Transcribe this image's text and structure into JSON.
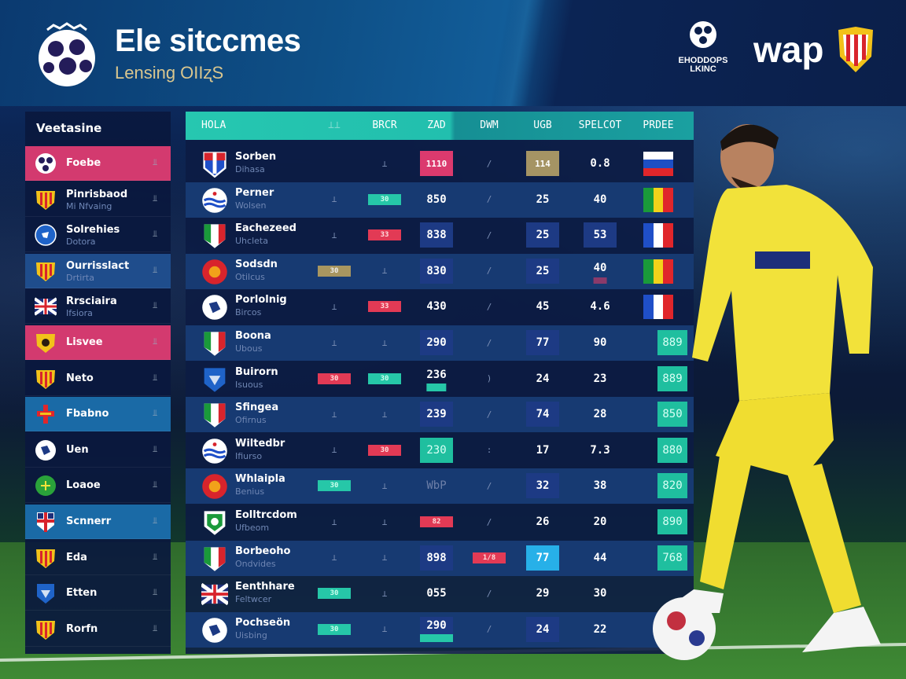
{
  "header": {
    "title": "Ele sitccmes",
    "subtitle": "Lensing OIIʐS",
    "partner_logo_text": "EHODDOPS LKINC",
    "brand": "wap"
  },
  "sidebar": {
    "title": "Veetasine",
    "items": [
      {
        "label": "Foebe",
        "sub": "",
        "icon": "ball",
        "state": "pink"
      },
      {
        "label": "Pinrisbaod",
        "sub": "Mi Nfvaing",
        "icon": "stripes",
        "state": ""
      },
      {
        "label": "Solrehies",
        "sub": "Dotora",
        "icon": "bluecircle",
        "state": ""
      },
      {
        "label": "Ourrisslact",
        "sub": "Drtirta",
        "icon": "stripes",
        "state": "blue"
      },
      {
        "label": "Rrsciaira",
        "sub": "Ifsiora",
        "icon": "uk",
        "state": ""
      },
      {
        "label": "Lisvee",
        "sub": "",
        "icon": "yellow",
        "state": "pink"
      },
      {
        "label": "Neto",
        "sub": "",
        "icon": "stripes",
        "state": ""
      },
      {
        "label": "Fbabno",
        "sub": "",
        "icon": "cross",
        "state": "sky"
      },
      {
        "label": "Uen",
        "sub": "",
        "icon": "whitecircle",
        "state": ""
      },
      {
        "label": "Loaoe",
        "sub": "",
        "icon": "green",
        "state": ""
      },
      {
        "label": "Scnnerr",
        "sub": "",
        "icon": "ukshield",
        "state": "sky"
      },
      {
        "label": "Eda",
        "sub": "",
        "icon": "stripes",
        "state": ""
      },
      {
        "label": "Etten",
        "sub": "",
        "icon": "blueshield",
        "state": ""
      },
      {
        "label": "Rorfn",
        "sub": "",
        "icon": "stripes",
        "state": ""
      }
    ]
  },
  "table": {
    "columns": [
      "HOLA",
      "⊥⊥",
      "BRCR",
      "ZAD",
      "DWM",
      "UGB",
      "SPELCOT",
      "PRDEE"
    ],
    "rows": [
      {
        "name": "Sorben",
        "sub": "Dihasa",
        "crest": "redshield",
        "cells": [
          [
            "",
            ""
          ],
          [
            "⊥",
            "mark"
          ],
          [
            "1110",
            "pink"
          ],
          [
            "/",
            "mark"
          ],
          [
            "114",
            "gold"
          ],
          [
            "0.8",
            ""
          ]
        ],
        "last": {
          "flag": [
            "#ffffff",
            "#1d4fc4",
            "#e0262b"
          ],
          "dir": "h"
        }
      },
      {
        "name": "Perner",
        "sub": "Wolsen",
        "crest": "waves",
        "cells": [
          [
            "⊥",
            "mark"
          ],
          [
            "30",
            "bteal"
          ],
          [
            "850",
            ""
          ],
          [
            "/",
            "mark"
          ],
          [
            "25",
            ""
          ],
          [
            "40",
            ""
          ]
        ],
        "last": {
          "flag": [
            "#1a9a3a",
            "#f3d21a",
            "#e0262b"
          ],
          "dir": "v"
        }
      },
      {
        "name": "Eachezeed",
        "sub": "Uhcleta",
        "crest": "italy",
        "cells": [
          [
            "⊥",
            "mark"
          ],
          [
            "33",
            "bred"
          ],
          [
            "838",
            "navy"
          ],
          [
            "/",
            "mark"
          ],
          [
            "25",
            "navy"
          ],
          [
            "53",
            "navy"
          ]
        ],
        "last": {
          "flag": [
            "#1f4fc8",
            "#ffffff",
            "#e0262b"
          ],
          "dir": "v"
        }
      },
      {
        "name": "Sodsdn",
        "sub": "Otilcus",
        "crest": "redcircle",
        "cells": [
          [
            "30",
            "bgold"
          ],
          [
            "⊥",
            "mark"
          ],
          [
            "830",
            "navy"
          ],
          [
            "/",
            "mark"
          ],
          [
            "25",
            "navy"
          ],
          [
            "40",
            "purplebar"
          ]
        ],
        "last": {
          "flag": [
            "#1a9a3a",
            "#f3d21a",
            "#e0262b"
          ],
          "dir": "v"
        }
      },
      {
        "name": "Porlolnig",
        "sub": "Bircos",
        "crest": "whitecircle",
        "cells": [
          [
            "⊥",
            "mark"
          ],
          [
            "33",
            "bred"
          ],
          [
            "430",
            ""
          ],
          [
            "/",
            "mark"
          ],
          [
            "45",
            ""
          ],
          [
            "4.6",
            ""
          ]
        ],
        "last": {
          "flag": [
            "#1f4fc8",
            "#ffffff",
            "#e0262b"
          ],
          "dir": "v"
        }
      },
      {
        "name": "Boona",
        "sub": "Ubous",
        "crest": "italy",
        "cells": [
          [
            "⊥",
            "mark"
          ],
          [
            "⊥",
            "mark"
          ],
          [
            "290",
            "navy"
          ],
          [
            "/",
            "mark"
          ],
          [
            "77",
            "navy"
          ],
          [
            "90",
            ""
          ]
        ],
        "last": {
          "badge": "889"
        }
      },
      {
        "name": "Buirorn",
        "sub": "Isuous",
        "crest": "blueshield",
        "cells": [
          [
            "30",
            "bred"
          ],
          [
            "30",
            "bteal"
          ],
          [
            "236",
            "underbar"
          ],
          [
            ")",
            "mark"
          ],
          [
            "24",
            ""
          ],
          [
            "23",
            ""
          ]
        ],
        "last": {
          "badge": "889"
        }
      },
      {
        "name": "Sfingea",
        "sub": "Ofirnus",
        "crest": "italy",
        "cells": [
          [
            "⊥",
            "mark"
          ],
          [
            "⊥",
            "mark"
          ],
          [
            "239",
            "navy"
          ],
          [
            "/",
            "mark"
          ],
          [
            "74",
            "navy"
          ],
          [
            "28",
            ""
          ]
        ],
        "last": {
          "badge": "850"
        }
      },
      {
        "name": "Wiltedbr",
        "sub": "Ifiurso",
        "crest": "waves",
        "cells": [
          [
            "⊥",
            "mark"
          ],
          [
            "30",
            "bred"
          ],
          [
            "230",
            "tealfill"
          ],
          [
            ":",
            "mark"
          ],
          [
            "17",
            ""
          ],
          [
            "7.3",
            ""
          ]
        ],
        "last": {
          "badge": "880"
        }
      },
      {
        "name": "Whlaipla",
        "sub": "Benius",
        "crest": "redcircle",
        "cells": [
          [
            "30",
            "bteal"
          ],
          [
            "⊥",
            "mark"
          ],
          [
            "WbP",
            "faded"
          ],
          [
            "/",
            "mark"
          ],
          [
            "32",
            "navy"
          ],
          [
            "38",
            ""
          ]
        ],
        "last": {
          "badge": "820"
        }
      },
      {
        "name": "Eolltrcdom",
        "sub": "Ufbeom",
        "crest": "greenshield",
        "cells": [
          [
            "⊥",
            "mark"
          ],
          [
            "⊥",
            "mark"
          ],
          [
            "82",
            "bred"
          ],
          [
            "/",
            "mark"
          ],
          [
            "26",
            ""
          ],
          [
            "20",
            ""
          ]
        ],
        "last": {
          "badge": "890"
        }
      },
      {
        "name": "Borbeoho",
        "sub": "Ondvides",
        "crest": "italy",
        "cells": [
          [
            "⊥",
            "mark"
          ],
          [
            "⊥",
            "mark"
          ],
          [
            "898",
            "navy"
          ],
          [
            "1/8",
            "bred"
          ],
          [
            "77",
            "cyan"
          ],
          [
            "44",
            ""
          ]
        ],
        "last": {
          "badge": "768"
        }
      },
      {
        "name": "Eenthhare",
        "sub": "Feltwcer",
        "crest": "uk",
        "cells": [
          [
            "30",
            "bteal"
          ],
          [
            "⊥",
            "mark"
          ],
          [
            "055",
            ""
          ],
          [
            "/",
            "mark"
          ],
          [
            "29",
            ""
          ],
          [
            "30",
            ""
          ]
        ],
        "last": {}
      },
      {
        "name": "Pochseön",
        "sub": "Uisbing",
        "crest": "whitecircle",
        "cells": [
          [
            "30",
            "bteal"
          ],
          [
            "⊥",
            "mark"
          ],
          [
            "290",
            "navy underbar"
          ],
          [
            "/",
            "mark"
          ],
          [
            "24",
            "navy"
          ],
          [
            "22",
            ""
          ]
        ],
        "last": {}
      }
    ]
  },
  "colors": {
    "pink": "#d33a6f",
    "teal": "#26c7a8",
    "navy": "#0c1c44",
    "accent_yellow": "#f2e23a"
  }
}
